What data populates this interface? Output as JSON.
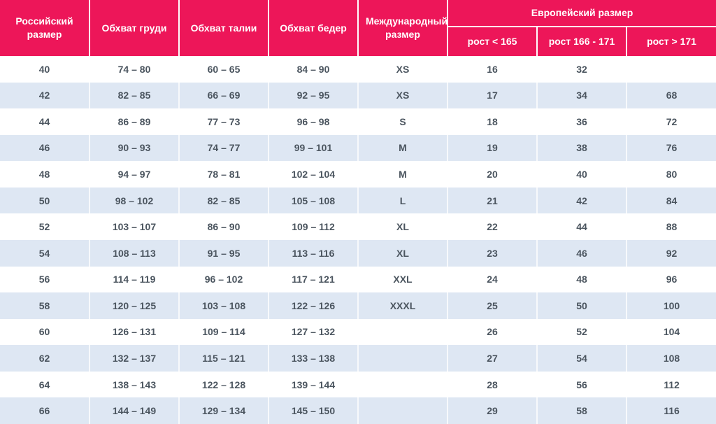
{
  "colors": {
    "header_bg": "#ed1659",
    "stripe_bg": "#dee7f3",
    "header_text": "#ffffff",
    "body_text": "#4b555f"
  },
  "table": {
    "header": {
      "russian_size": "Российский размер",
      "chest": "Обхват груди",
      "waist": "Обхват талии",
      "hips": "Обхват бедер",
      "international_size": "Международный размер",
      "european_size": "Европейский размер",
      "height_lt_165": "рост < 165",
      "height_166_171": "рост 166 - 171",
      "height_gt_171": "рост > 171"
    },
    "rows": [
      [
        "40",
        "74 – 80",
        "60 – 65",
        "84 – 90",
        "XS",
        "16",
        "32",
        ""
      ],
      [
        "42",
        "82 – 85",
        "66 – 69",
        "92 – 95",
        "XS",
        "17",
        "34",
        "68"
      ],
      [
        "44",
        "86 – 89",
        "77 – 73",
        "96 – 98",
        "S",
        "18",
        "36",
        "72"
      ],
      [
        "46",
        "90 – 93",
        "74 – 77",
        "99 – 101",
        "M",
        "19",
        "38",
        "76"
      ],
      [
        "48",
        "94 – 97",
        "78 – 81",
        "102 – 104",
        "M",
        "20",
        "40",
        "80"
      ],
      [
        "50",
        "98 – 102",
        "82 – 85",
        "105 – 108",
        "L",
        "21",
        "42",
        "84"
      ],
      [
        "52",
        "103 – 107",
        "86 – 90",
        "109 – 112",
        "XL",
        "22",
        "44",
        "88"
      ],
      [
        "54",
        "108 – 113",
        "91 – 95",
        "113 – 116",
        "XL",
        "23",
        "46",
        "92"
      ],
      [
        "56",
        "114 – 119",
        "96 – 102",
        "117 – 121",
        "XXL",
        "24",
        "48",
        "96"
      ],
      [
        "58",
        "120 – 125",
        "103 – 108",
        "122 – 126",
        "XXXL",
        "25",
        "50",
        "100"
      ],
      [
        "60",
        "126 – 131",
        "109 – 114",
        "127 – 132",
        "",
        "26",
        "52",
        "104"
      ],
      [
        "62",
        "132 – 137",
        "115 – 121",
        "133 – 138",
        "",
        "27",
        "54",
        "108"
      ],
      [
        "64",
        "138 – 143",
        "122 – 128",
        "139 – 144",
        "",
        "28",
        "56",
        "112"
      ],
      [
        "66",
        "144 – 149",
        "129 – 134",
        "145 – 150",
        "",
        "29",
        "58",
        "116"
      ]
    ]
  }
}
